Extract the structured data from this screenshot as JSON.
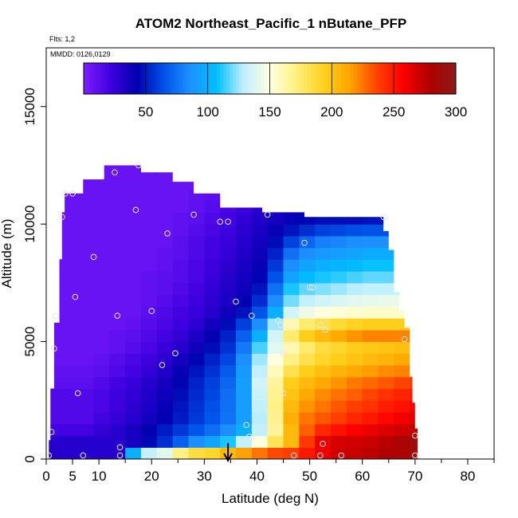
{
  "chart_data": {
    "type": "heatmap",
    "title": "ATOM2 Northeast_Pacific_1 nButane_PFP",
    "flights_label": "Flts: 1,2",
    "dates_label": "MMDD: 0126,0129",
    "xlabel": "Latitude (deg N)",
    "ylabel": "Altitude (m)",
    "xlim": [
      0,
      85
    ],
    "ylim": [
      0,
      17500
    ],
    "x_ticks": [
      0,
      5,
      10,
      20,
      30,
      40,
      50,
      60,
      70,
      80
    ],
    "y_ticks": [
      0,
      5000,
      10000,
      15000
    ],
    "colorbar": {
      "range": [
        0,
        300
      ],
      "ticks": [
        50,
        100,
        150,
        200,
        250,
        300
      ],
      "colors": [
        "#7F1FFF",
        "#3F00E0",
        "#0000B0",
        "#0050E8",
        "#1E90FF",
        "#00BFFF",
        "#BFEFFF",
        "#FFFFE0",
        "#FFF080",
        "#FFD21E",
        "#FFA500",
        "#FF4500",
        "#FF0000",
        "#B00000",
        "#8B1A1A"
      ]
    },
    "arrow_latitude": 34.5,
    "lat_edges": [
      0,
      3,
      6,
      9,
      12,
      15,
      18,
      21,
      24,
      27,
      30,
      33,
      36,
      39,
      42,
      45,
      48,
      51,
      54,
      57,
      60,
      63,
      66,
      69,
      72
    ],
    "rows": [
      {
        "alt": [
          0,
          500
        ],
        "vals": [
          30,
          30,
          30,
          30,
          30,
          100,
          130,
          140,
          170,
          185,
          190,
          205,
          215,
          225,
          235,
          238,
          250,
          262,
          270,
          272,
          275,
          278,
          282,
          288
        ]
      },
      {
        "alt": [
          500,
          1000
        ],
        "vals": [
          30,
          30,
          30,
          30,
          30,
          35,
          45,
          55,
          70,
          85,
          95,
          110,
          130,
          150,
          180,
          205,
          240,
          262,
          268,
          270,
          272,
          276,
          282,
          290
        ]
      },
      {
        "alt": [
          1000,
          1500
        ],
        "vals": [
          20,
          20,
          20,
          25,
          30,
          35,
          42,
          50,
          58,
          66,
          74,
          85,
          100,
          130,
          165,
          205,
          230,
          245,
          252,
          258,
          262,
          266,
          270,
          275
        ]
      },
      {
        "alt": [
          1500,
          2000
        ],
        "vals": [
          15,
          15,
          15,
          20,
          25,
          30,
          36,
          42,
          50,
          58,
          66,
          76,
          92,
          128,
          168,
          210,
          225,
          232,
          238,
          245,
          250,
          255,
          260,
          265
        ]
      },
      {
        "alt": [
          2000,
          2500
        ],
        "vals": [
          15,
          15,
          15,
          18,
          22,
          28,
          34,
          40,
          48,
          56,
          64,
          75,
          92,
          130,
          170,
          205,
          218,
          225,
          232,
          238,
          242,
          248,
          252,
          258
        ]
      },
      {
        "alt": [
          2500,
          3000
        ],
        "vals": [
          15,
          15,
          15,
          18,
          22,
          26,
          32,
          38,
          46,
          54,
          62,
          74,
          92,
          132,
          168,
          200,
          212,
          220,
          226,
          230,
          236,
          242,
          246,
          250
        ]
      },
      {
        "alt": [
          3000,
          3500
        ],
        "vals": [
          12,
          12,
          12,
          15,
          20,
          24,
          30,
          36,
          44,
          52,
          60,
          72,
          92,
          135,
          165,
          195,
          205,
          212,
          218,
          224,
          228,
          232,
          236,
          240
        ]
      },
      {
        "alt": [
          3500,
          4000
        ],
        "vals": [
          10,
          10,
          10,
          12,
          16,
          20,
          26,
          32,
          40,
          48,
          56,
          68,
          90,
          130,
          158,
          182,
          195,
          202,
          208,
          212,
          216,
          220,
          222,
          225
        ]
      },
      {
        "alt": [
          4000,
          4500
        ],
        "vals": [
          8,
          8,
          8,
          10,
          14,
          18,
          22,
          28,
          36,
          44,
          52,
          62,
          85,
          125,
          150,
          170,
          182,
          190,
          195,
          200,
          205,
          208,
          212,
          215
        ]
      },
      {
        "alt": [
          4500,
          5000
        ],
        "vals": [
          8,
          8,
          8,
          8,
          10,
          14,
          18,
          24,
          30,
          38,
          46,
          56,
          78,
          115,
          140,
          160,
          175,
          185,
          190,
          195,
          198,
          200,
          202,
          205
        ]
      },
      {
        "alt": [
          5000,
          5500
        ],
        "vals": [
          8,
          8,
          8,
          8,
          10,
          12,
          16,
          20,
          26,
          34,
          42,
          52,
          70,
          100,
          135,
          175,
          195,
          205,
          212,
          218,
          222,
          222,
          222,
          222
        ]
      },
      {
        "alt": [
          5500,
          6000
        ],
        "vals": [
          8,
          8,
          8,
          8,
          8,
          10,
          14,
          18,
          22,
          28,
          36,
          46,
          60,
          85,
          125,
          160,
          175,
          182,
          188,
          192,
          195,
          195,
          195,
          195
        ]
      },
      {
        "alt": [
          6000,
          6500
        ],
        "vals": [
          8,
          8,
          8,
          8,
          8,
          8,
          12,
          16,
          20,
          24,
          30,
          38,
          48,
          65,
          100,
          135,
          145,
          150,
          152,
          154,
          155,
          155,
          155,
          155
        ]
      },
      {
        "alt": [
          6500,
          7000
        ],
        "vals": [
          8,
          8,
          8,
          8,
          8,
          8,
          10,
          14,
          18,
          22,
          28,
          34,
          42,
          55,
          85,
          120,
          130,
          135,
          138,
          140,
          142,
          143,
          143,
          143
        ]
      },
      {
        "alt": [
          7000,
          7500
        ],
        "vals": [
          8,
          8,
          8,
          8,
          8,
          8,
          10,
          12,
          16,
          20,
          26,
          32,
          38,
          48,
          75,
          110,
          118,
          122,
          125,
          128,
          130,
          130,
          130,
          130
        ]
      },
      {
        "alt": [
          7500,
          8000
        ],
        "vals": [
          8,
          8,
          8,
          8,
          8,
          8,
          10,
          12,
          14,
          18,
          24,
          30,
          36,
          44,
          65,
          95,
          105,
          110,
          112,
          115,
          118,
          118,
          118,
          118
        ]
      },
      {
        "alt": [
          8000,
          8500
        ],
        "vals": [
          8,
          8,
          8,
          8,
          8,
          8,
          8,
          10,
          14,
          18,
          22,
          28,
          34,
          40,
          58,
          85,
          95,
          100,
          102,
          105,
          108,
          108,
          108,
          108
        ]
      },
      {
        "alt": [
          8500,
          9000
        ],
        "vals": [
          8,
          8,
          8,
          8,
          8,
          8,
          8,
          10,
          12,
          16,
          20,
          26,
          32,
          38,
          52,
          75,
          85,
          90,
          92,
          95,
          98,
          98,
          98,
          98
        ]
      },
      {
        "alt": [
          9000,
          9500
        ],
        "vals": [
          8,
          8,
          8,
          8,
          8,
          8,
          8,
          8,
          12,
          16,
          20,
          24,
          30,
          36,
          46,
          60,
          72,
          80,
          82,
          85,
          86,
          86,
          86,
          86
        ]
      },
      {
        "alt": [
          9500,
          10000
        ],
        "vals": [
          8,
          8,
          8,
          8,
          8,
          8,
          8,
          8,
          10,
          14,
          18,
          22,
          28,
          34,
          40,
          48,
          55,
          60,
          62,
          64,
          65,
          65,
          65,
          65
        ]
      },
      {
        "alt": [
          10000,
          10500
        ],
        "vals": [
          8,
          8,
          8,
          8,
          8,
          8,
          8,
          8,
          10,
          12,
          16,
          20,
          26,
          32,
          36,
          40,
          44,
          46,
          46,
          46,
          48,
          48,
          48,
          48
        ]
      },
      {
        "alt": [
          10500,
          11000
        ],
        "vals": [
          8,
          8,
          8,
          8,
          8,
          8,
          8,
          8,
          8,
          10,
          14,
          18,
          22,
          28,
          32,
          34,
          36,
          36,
          36,
          36,
          36,
          36,
          36,
          36
        ]
      },
      {
        "alt": [
          11000,
          11500
        ],
        "vals": [
          8,
          8,
          8,
          8,
          8,
          8,
          8,
          8,
          8,
          10,
          12,
          16,
          20,
          24,
          28,
          30,
          30,
          30,
          30,
          30,
          30,
          30,
          30,
          30
        ]
      },
      {
        "alt": [
          11500,
          12000
        ],
        "vals": [
          8,
          8,
          8,
          8,
          8,
          8,
          8,
          8,
          8,
          8,
          10,
          12,
          14,
          16,
          16,
          16,
          16,
          16,
          16,
          16,
          16,
          16,
          16,
          16
        ]
      },
      {
        "alt": [
          12000,
          12500
        ],
        "vals": [
          8,
          8,
          8,
          8,
          8,
          8,
          8,
          8,
          8,
          8,
          8,
          8,
          8,
          8,
          8,
          8,
          8,
          8,
          8,
          8,
          8,
          8,
          8,
          8
        ]
      }
    ],
    "outline": [
      [
        0.5,
        0
      ],
      [
        0.5,
        800
      ],
      [
        0.8,
        800
      ],
      [
        0.8,
        3000
      ],
      [
        1.5,
        3000
      ],
      [
        1.5,
        5800
      ],
      [
        2.5,
        5800
      ],
      [
        2.5,
        8500
      ],
      [
        3,
        8500
      ],
      [
        3,
        10500
      ],
      [
        3.5,
        10500
      ],
      [
        3.5,
        11300
      ],
      [
        7,
        11300
      ],
      [
        7,
        11900
      ],
      [
        11,
        11900
      ],
      [
        11,
        12500
      ],
      [
        18,
        12500
      ],
      [
        18,
        12200
      ],
      [
        24,
        12200
      ],
      [
        24,
        11800
      ],
      [
        28,
        11800
      ],
      [
        28,
        11300
      ],
      [
        33,
        11300
      ],
      [
        33,
        10700
      ],
      [
        41,
        10700
      ],
      [
        41,
        10500
      ],
      [
        49,
        10500
      ],
      [
        49,
        10300
      ],
      [
        64,
        10300
      ],
      [
        64,
        9700
      ],
      [
        65,
        9700
      ],
      [
        65,
        8900
      ],
      [
        66,
        8900
      ],
      [
        66,
        7100
      ],
      [
        67,
        7100
      ],
      [
        67,
        6300
      ],
      [
        68,
        6300
      ],
      [
        68,
        5600
      ],
      [
        69,
        5600
      ],
      [
        69,
        3500
      ],
      [
        69.5,
        3500
      ],
      [
        69.5,
        2400
      ],
      [
        70,
        2400
      ],
      [
        70,
        1300
      ],
      [
        70.5,
        1300
      ],
      [
        70.5,
        0
      ]
    ],
    "samples": [
      [
        0.5,
        150
      ],
      [
        1,
        1150
      ],
      [
        1.5,
        4700
      ],
      [
        1.8,
        6100
      ],
      [
        3,
        10300
      ],
      [
        3.6,
        11300
      ],
      [
        5,
        11300
      ],
      [
        5.5,
        6900
      ],
      [
        6,
        2800
      ],
      [
        7,
        150
      ],
      [
        9,
        8600
      ],
      [
        13,
        12200
      ],
      [
        13.5,
        6100
      ],
      [
        14,
        150
      ],
      [
        14,
        500
      ],
      [
        17,
        10600
      ],
      [
        17.5,
        12500
      ],
      [
        20,
        6300
      ],
      [
        21,
        150
      ],
      [
        22,
        4000
      ],
      [
        23,
        9600
      ],
      [
        24.5,
        4500
      ],
      [
        28,
        10400
      ],
      [
        33,
        10100
      ],
      [
        34.5,
        10100
      ],
      [
        36,
        6700
      ],
      [
        38,
        1450
      ],
      [
        38.5,
        950
      ],
      [
        39,
        6100
      ],
      [
        42,
        10400
      ],
      [
        44,
        5900
      ],
      [
        44.5,
        5700
      ],
      [
        45,
        4500
      ],
      [
        45,
        2800
      ],
      [
        47,
        150
      ],
      [
        49,
        9200
      ],
      [
        50,
        7300
      ],
      [
        50.5,
        7300
      ],
      [
        52,
        5700
      ],
      [
        52,
        150
      ],
      [
        52.5,
        650
      ],
      [
        53,
        5500
      ],
      [
        56,
        150
      ],
      [
        64,
        10300
      ],
      [
        68,
        5100
      ],
      [
        70,
        1000
      ],
      [
        70,
        150
      ]
    ]
  }
}
